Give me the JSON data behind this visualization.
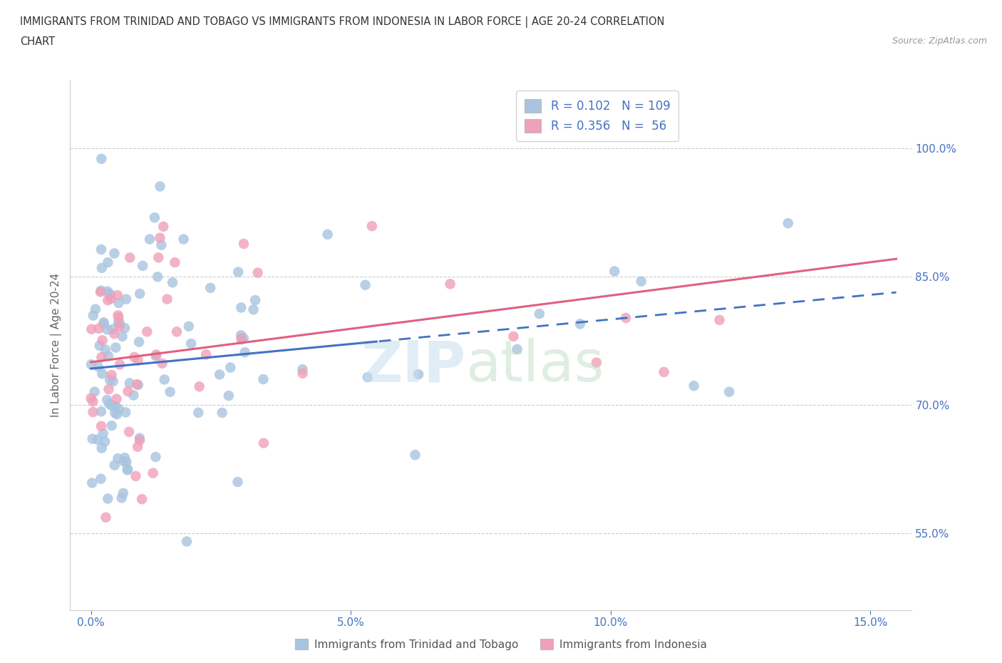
{
  "title_line1": "IMMIGRANTS FROM TRINIDAD AND TOBAGO VS IMMIGRANTS FROM INDONESIA IN LABOR FORCE | AGE 20-24 CORRELATION",
  "title_line2": "CHART",
  "source_text": "Source: ZipAtlas.com",
  "xlabel_blue": "Immigrants from Trinidad and Tobago",
  "xlabel_pink": "Immigrants from Indonesia",
  "ylabel": "In Labor Force | Age 20-24",
  "x_tick_labels": [
    "0.0%",
    "5.0%",
    "10.0%",
    "15.0%"
  ],
  "x_tick_vals": [
    0.0,
    5.0,
    10.0,
    15.0
  ],
  "y_tick_labels": [
    "55.0%",
    "70.0%",
    "85.0%",
    "100.0%"
  ],
  "y_tick_vals": [
    55.0,
    70.0,
    85.0,
    100.0
  ],
  "xlim": [
    -0.4,
    15.8
  ],
  "ylim": [
    46.0,
    108.0
  ],
  "blue_R": 0.102,
  "blue_N": 109,
  "pink_R": 0.356,
  "pink_N": 56,
  "blue_color": "#a8c4e0",
  "pink_color": "#f0a0b8",
  "blue_line_color": "#4472c4",
  "pink_line_color": "#e06080",
  "legend_R_color": "#4472c4",
  "dashed_start_x": 5.5
}
